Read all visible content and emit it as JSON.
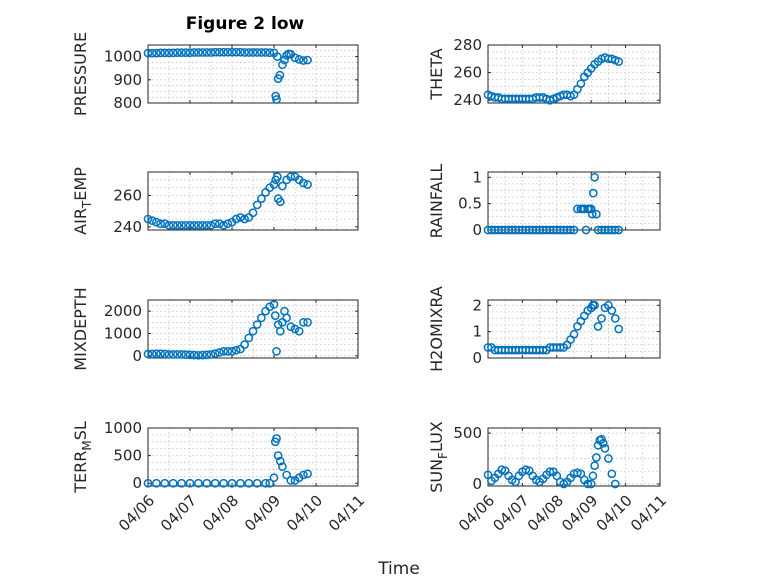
{
  "figure": {
    "title": "Figure 2 low"
  },
  "chart_data": [
    {
      "type": "scatter",
      "ylabel": "PRESSURE",
      "ylim": [
        800,
        1050
      ],
      "yticks": [
        800,
        900,
        1000
      ],
      "grid": true,
      "xlim": [
        0,
        5
      ],
      "xticks": [
        0,
        1,
        2,
        3,
        4,
        5
      ],
      "xticklabels": [],
      "x": [
        0,
        0.1,
        0.2,
        0.3,
        0.4,
        0.5,
        0.6,
        0.7,
        0.8,
        0.9,
        1,
        1.1,
        1.2,
        1.3,
        1.4,
        1.5,
        1.6,
        1.7,
        1.8,
        1.9,
        2,
        2.1,
        2.2,
        2.3,
        2.4,
        2.5,
        2.6,
        2.7,
        2.8,
        2.9,
        3.0,
        3.04,
        3.06,
        3.08,
        3.1,
        3.14,
        3.2,
        3.25,
        3.3,
        3.35,
        3.4,
        3.5,
        3.6,
        3.7,
        3.8
      ],
      "y": [
        1015,
        1015,
        1015,
        1016,
        1016,
        1016,
        1016,
        1017,
        1017,
        1017,
        1017,
        1018,
        1018,
        1018,
        1018,
        1018,
        1019,
        1019,
        1019,
        1019,
        1019,
        1019,
        1019,
        1018,
        1018,
        1018,
        1018,
        1018,
        1018,
        1017,
        1016,
        830,
        815,
        1000,
        905,
        920,
        965,
        985,
        1005,
        1012,
        1010,
        995,
        988,
        983,
        985
      ]
    },
    {
      "type": "scatter",
      "ylabel": "THETA",
      "ylim": [
        238,
        280
      ],
      "yticks": [
        240,
        260,
        280
      ],
      "grid": true,
      "xlim": [
        0,
        5
      ],
      "xticks": [
        0,
        1,
        2,
        3,
        4,
        5
      ],
      "xticklabels": [],
      "x": [
        0,
        0.1,
        0.2,
        0.3,
        0.4,
        0.5,
        0.6,
        0.7,
        0.8,
        0.9,
        1,
        1.1,
        1.2,
        1.3,
        1.4,
        1.5,
        1.6,
        1.7,
        1.8,
        1.9,
        2,
        2.1,
        2.2,
        2.3,
        2.4,
        2.5,
        2.6,
        2.7,
        2.8,
        2.9,
        3.0,
        3.1,
        3.2,
        3.3,
        3.4,
        3.5,
        3.6,
        3.7,
        3.8
      ],
      "y": [
        244,
        243,
        242,
        242,
        241,
        241,
        241,
        241,
        241,
        241,
        241,
        241,
        241,
        241,
        242,
        242,
        242,
        241,
        240,
        241,
        242,
        243,
        244,
        244,
        243,
        244,
        248,
        252,
        257,
        260,
        263,
        266,
        268,
        270,
        271,
        270,
        270,
        269,
        268
      ]
    },
    {
      "type": "scatter",
      "ylabel": "AIR_TEMP",
      "ylim": [
        238,
        275
      ],
      "yticks": [
        240,
        260
      ],
      "grid": true,
      "xlim": [
        0,
        5
      ],
      "xticks": [
        0,
        1,
        2,
        3,
        4,
        5
      ],
      "xticklabels": [],
      "x": [
        0,
        0.1,
        0.2,
        0.3,
        0.4,
        0.5,
        0.6,
        0.7,
        0.8,
        0.9,
        1,
        1.1,
        1.2,
        1.3,
        1.4,
        1.5,
        1.6,
        1.7,
        1.8,
        1.9,
        2,
        2.1,
        2.2,
        2.3,
        2.4,
        2.5,
        2.6,
        2.7,
        2.8,
        2.9,
        3.0,
        3.04,
        3.08,
        3.1,
        3.15,
        3.2,
        3.3,
        3.4,
        3.5,
        3.6,
        3.7,
        3.8
      ],
      "y": [
        245,
        244,
        243,
        242,
        242,
        241,
        241,
        241,
        241,
        241,
        241,
        241,
        241,
        241,
        241,
        241,
        242,
        242,
        241,
        242,
        243,
        245,
        246,
        245,
        246,
        249,
        254,
        258,
        262,
        265,
        267,
        270,
        272,
        258,
        256,
        266,
        270,
        272,
        272,
        270,
        268,
        267
      ]
    },
    {
      "type": "scatter",
      "ylabel": "RAINFALL",
      "ylim": [
        0,
        1.1
      ],
      "yticks": [
        0,
        0.5,
        1
      ],
      "grid": true,
      "xlim": [
        0,
        5
      ],
      "xticks": [
        0,
        1,
        2,
        3,
        4,
        5
      ],
      "xticklabels": [],
      "x": [
        0,
        0.1,
        0.2,
        0.3,
        0.4,
        0.5,
        0.6,
        0.7,
        0.8,
        0.9,
        1,
        1.1,
        1.2,
        1.3,
        1.4,
        1.5,
        1.6,
        1.7,
        1.8,
        1.9,
        2,
        2.1,
        2.2,
        2.3,
        2.4,
        2.5,
        2.6,
        2.7,
        2.75,
        2.8,
        2.85,
        2.9,
        2.95,
        3.0,
        3.03,
        3.06,
        3.1,
        3.15,
        3.2,
        3.3,
        3.4,
        3.5,
        3.6,
        3.7,
        3.8
      ],
      "y": [
        0,
        0,
        0,
        0,
        0,
        0,
        0,
        0,
        0,
        0,
        0,
        0,
        0,
        0,
        0,
        0,
        0,
        0,
        0,
        0,
        0,
        0,
        0,
        0,
        0,
        0,
        0.4,
        0.4,
        0.4,
        0.4,
        0,
        0.4,
        0.4,
        0.4,
        0.3,
        0.7,
        1,
        0.3,
        0,
        0,
        0,
        0,
        0,
        0,
        0
      ]
    },
    {
      "type": "scatter",
      "ylabel": "MIXDEPTH",
      "ylim": [
        -100,
        2500
      ],
      "yticks": [
        0,
        1000,
        2000
      ],
      "grid": true,
      "xlim": [
        0,
        5
      ],
      "xticks": [
        0,
        1,
        2,
        3,
        4,
        5
      ],
      "xticklabels": [],
      "x": [
        0,
        0.1,
        0.2,
        0.3,
        0.4,
        0.5,
        0.6,
        0.7,
        0.8,
        0.9,
        1,
        1.1,
        1.2,
        1.3,
        1.4,
        1.5,
        1.6,
        1.7,
        1.8,
        1.9,
        2,
        2.1,
        2.2,
        2.3,
        2.4,
        2.5,
        2.6,
        2.7,
        2.8,
        2.9,
        3.0,
        3.03,
        3.06,
        3.1,
        3.15,
        3.2,
        3.25,
        3.3,
        3.4,
        3.5,
        3.6,
        3.7,
        3.8
      ],
      "y": [
        80,
        80,
        90,
        90,
        80,
        60,
        60,
        60,
        60,
        50,
        40,
        30,
        20,
        30,
        40,
        60,
        100,
        150,
        200,
        200,
        200,
        250,
        300,
        500,
        800,
        1100,
        1400,
        1700,
        2000,
        2200,
        2300,
        1800,
        200,
        1400,
        1100,
        1500,
        2000,
        1700,
        1300,
        1200,
        1100,
        1500,
        1500
      ]
    },
    {
      "type": "scatter",
      "ylabel": "H2OMIXRA",
      "ylim": [
        0,
        2.2
      ],
      "yticks": [
        0,
        1,
        2
      ],
      "grid": true,
      "xlim": [
        0,
        5
      ],
      "xticks": [
        0,
        1,
        2,
        3,
        4,
        5
      ],
      "xticklabels": [],
      "x": [
        0,
        0.1,
        0.2,
        0.3,
        0.4,
        0.5,
        0.6,
        0.7,
        0.8,
        0.9,
        1,
        1.1,
        1.2,
        1.3,
        1.4,
        1.5,
        1.6,
        1.7,
        1.8,
        1.9,
        2,
        2.1,
        2.2,
        2.3,
        2.4,
        2.5,
        2.6,
        2.7,
        2.8,
        2.9,
        3.0,
        3.05,
        3.1,
        3.2,
        3.3,
        3.4,
        3.5,
        3.6,
        3.7,
        3.8
      ],
      "y": [
        0.4,
        0.4,
        0.3,
        0.3,
        0.3,
        0.3,
        0.3,
        0.3,
        0.3,
        0.3,
        0.3,
        0.3,
        0.3,
        0.3,
        0.3,
        0.3,
        0.3,
        0.3,
        0.4,
        0.4,
        0.4,
        0.4,
        0.4,
        0.5,
        0.7,
        0.9,
        1.2,
        1.4,
        1.6,
        1.8,
        1.9,
        2.0,
        2.0,
        1.2,
        1.5,
        1.9,
        2.0,
        1.8,
        1.5,
        1.1
      ]
    },
    {
      "type": "scatter",
      "ylabel": "TERR_MSL",
      "ylim": [
        -50,
        1000
      ],
      "yticks": [
        0,
        500,
        1000
      ],
      "grid": true,
      "xlim": [
        0,
        5
      ],
      "xticks": [
        0,
        1,
        2,
        3,
        4,
        5
      ],
      "xticklabels": [
        "04/06",
        "04/07",
        "04/08",
        "04/09",
        "04/10",
        "04/11"
      ],
      "xlabel": "Time",
      "x": [
        0,
        0.2,
        0.4,
        0.6,
        0.8,
        1,
        1.2,
        1.4,
        1.6,
        1.8,
        2,
        2.2,
        2.4,
        2.6,
        2.8,
        2.9,
        3.0,
        3.03,
        3.06,
        3.1,
        3.15,
        3.2,
        3.3,
        3.4,
        3.5,
        3.6,
        3.7,
        3.8
      ],
      "y": [
        0,
        0,
        0,
        0,
        0,
        0,
        0,
        0,
        0,
        0,
        0,
        0,
        0,
        0,
        0,
        0,
        100,
        750,
        810,
        500,
        400,
        300,
        150,
        50,
        50,
        100,
        150,
        170
      ]
    },
    {
      "type": "scatter",
      "ylabel": "SUN_FLUX",
      "ylim": [
        -20,
        550
      ],
      "yticks": [
        0,
        500
      ],
      "grid": true,
      "xlim": [
        0,
        5
      ],
      "xticks": [
        0,
        1,
        2,
        3,
        4,
        5
      ],
      "xticklabels": [
        "04/06",
        "04/07",
        "04/08",
        "04/09",
        "04/10",
        "04/11"
      ],
      "xlabel": "Time",
      "x": [
        0,
        0.1,
        0.2,
        0.3,
        0.4,
        0.5,
        0.6,
        0.7,
        0.8,
        0.9,
        1,
        1.1,
        1.2,
        1.3,
        1.4,
        1.5,
        1.6,
        1.7,
        1.8,
        1.9,
        2,
        2.1,
        2.2,
        2.3,
        2.4,
        2.5,
        2.6,
        2.7,
        2.8,
        2.9,
        3.0,
        3.05,
        3.1,
        3.15,
        3.2,
        3.25,
        3.3,
        3.35,
        3.4,
        3.5,
        3.6,
        3.7
      ],
      "y": [
        90,
        30,
        60,
        100,
        140,
        130,
        80,
        40,
        20,
        80,
        120,
        140,
        130,
        80,
        40,
        20,
        50,
        90,
        120,
        120,
        80,
        20,
        0,
        20,
        60,
        100,
        110,
        100,
        40,
        0,
        0,
        80,
        180,
        260,
        380,
        430,
        440,
        400,
        350,
        250,
        100,
        0
      ]
    }
  ]
}
